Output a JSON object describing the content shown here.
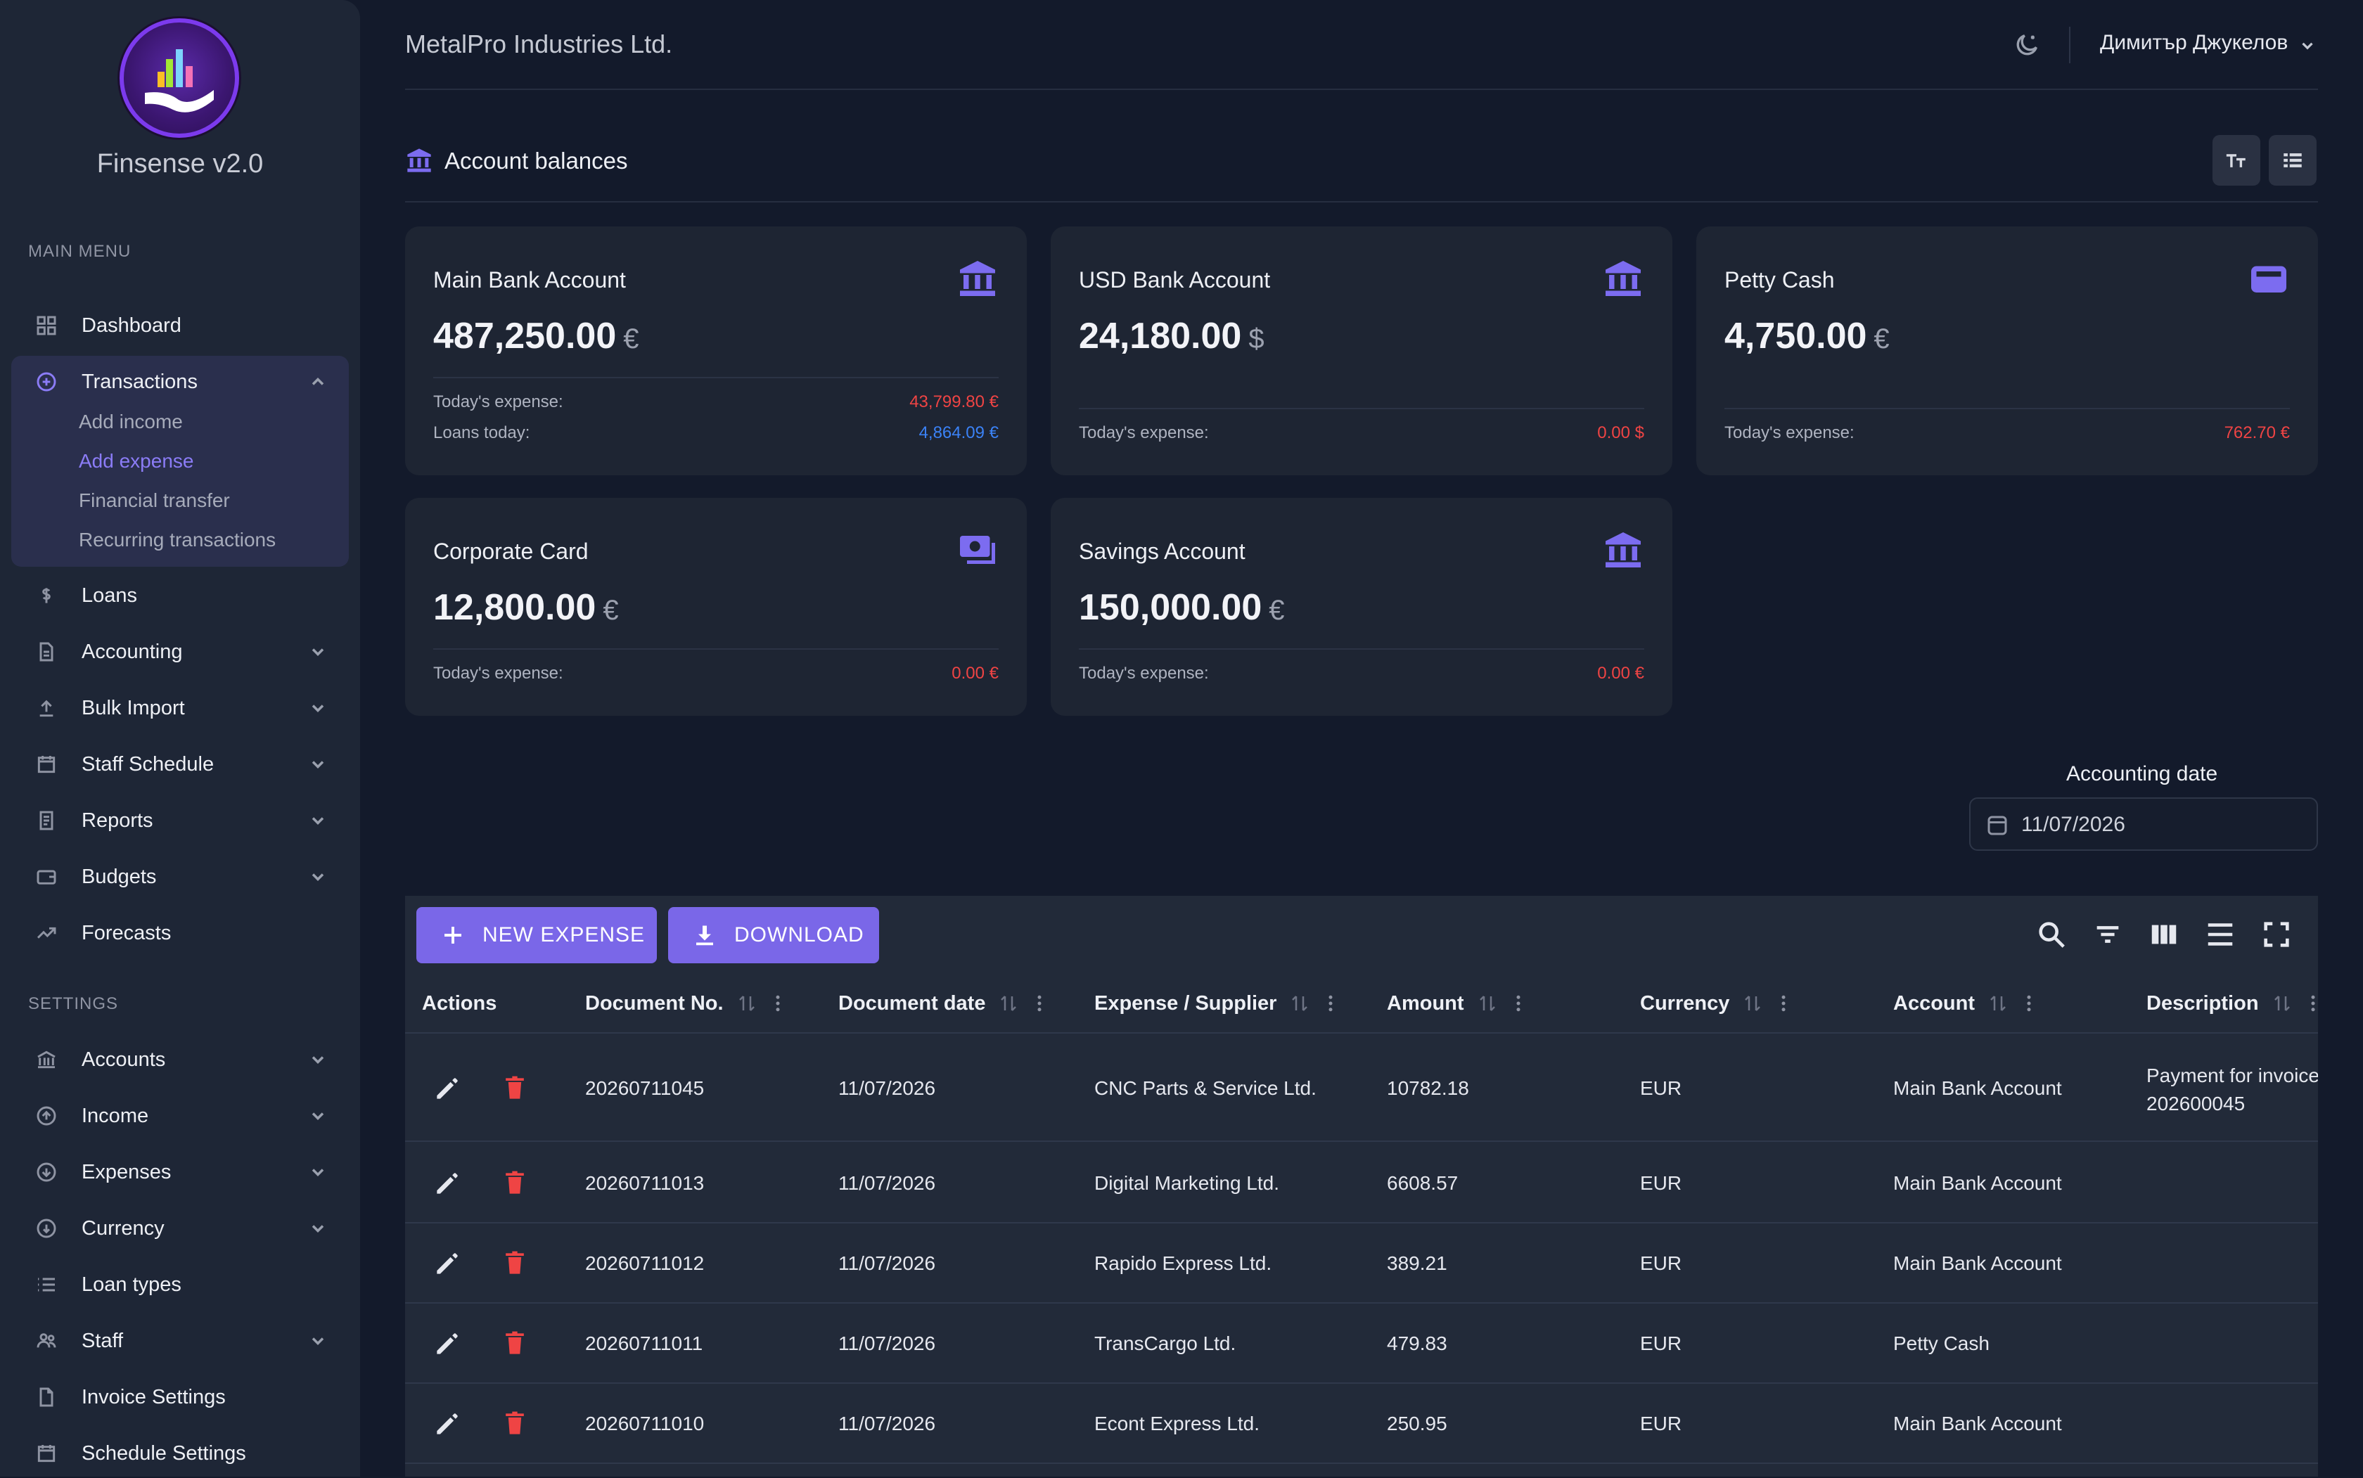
{
  "app": {
    "name": "Finsense v2.0"
  },
  "sidebar": {
    "main_menu_label": "MAIN MENU",
    "settings_label": "SETTINGS",
    "items": [
      {
        "label": "Dashboard"
      },
      {
        "label": "Transactions"
      },
      {
        "label": "Loans"
      },
      {
        "label": "Accounting"
      },
      {
        "label": "Bulk Import"
      },
      {
        "label": "Staff Schedule"
      },
      {
        "label": "Reports"
      },
      {
        "label": "Budgets"
      },
      {
        "label": "Forecasts"
      }
    ],
    "transactions_sub": [
      {
        "label": "Add income"
      },
      {
        "label": "Add expense"
      },
      {
        "label": "Financial transfer"
      },
      {
        "label": "Recurring transactions"
      }
    ],
    "settings_items": [
      {
        "label": "Accounts"
      },
      {
        "label": "Income"
      },
      {
        "label": "Expenses"
      },
      {
        "label": "Currency"
      },
      {
        "label": "Loan types"
      },
      {
        "label": "Staff"
      },
      {
        "label": "Invoice Settings"
      },
      {
        "label": "Schedule Settings"
      }
    ]
  },
  "header": {
    "company": "MetalPro Industries Ltd.",
    "user": "Димитър Джукелов"
  },
  "balances": {
    "title": "Account balances",
    "cards": [
      {
        "name": "Main Bank Account",
        "amount": "487,250.00",
        "currency": "€",
        "expense_label": "Today's expense:",
        "expense": "43,799.80 €",
        "loans_label": "Loans today:",
        "loans": "4,864.09 €"
      },
      {
        "name": "USD Bank Account",
        "amount": "24,180.00",
        "currency": "$",
        "expense_label": "Today's expense:",
        "expense": "0.00 $"
      },
      {
        "name": "Petty Cash",
        "amount": "4,750.00",
        "currency": "€",
        "expense_label": "Today's expense:",
        "expense": "762.70 €"
      },
      {
        "name": "Corporate Card",
        "amount": "12,800.00",
        "currency": "€",
        "expense_label": "Today's expense:",
        "expense": "0.00 €"
      },
      {
        "name": "Savings Account",
        "amount": "150,000.00",
        "currency": "€",
        "expense_label": "Today's expense:",
        "expense": "0.00 €"
      }
    ]
  },
  "accounting_date": {
    "label": "Accounting date",
    "value": "11/07/2026"
  },
  "grid": {
    "new_label": "NEW EXPENSE",
    "download_label": "DOWNLOAD",
    "columns": [
      "Actions",
      "Document No.",
      "Document date",
      "Expense / Supplier",
      "Amount",
      "Currency",
      "Account",
      "Description"
    ],
    "rows": [
      {
        "doc": "20260711045",
        "date": "11/07/2026",
        "supplier": "CNC Parts & Service Ltd.",
        "amount": "10782.18",
        "currency": "EUR",
        "account": "Main Bank Account",
        "desc1": "Payment for invoice",
        "desc2": "202600045"
      },
      {
        "doc": "20260711013",
        "date": "11/07/2026",
        "supplier": "Digital Marketing Ltd.",
        "amount": "6608.57",
        "currency": "EUR",
        "account": "Main Bank Account",
        "desc1": "",
        "desc2": ""
      },
      {
        "doc": "20260711012",
        "date": "11/07/2026",
        "supplier": "Rapido Express Ltd.",
        "amount": "389.21",
        "currency": "EUR",
        "account": "Main Bank Account",
        "desc1": "",
        "desc2": ""
      },
      {
        "doc": "20260711011",
        "date": "11/07/2026",
        "supplier": "TransCargo Ltd.",
        "amount": "479.83",
        "currency": "EUR",
        "account": "Petty Cash",
        "desc1": "",
        "desc2": ""
      },
      {
        "doc": "20260711010",
        "date": "11/07/2026",
        "supplier": "Econt Express Ltd.",
        "amount": "250.95",
        "currency": "EUR",
        "account": "Main Bank Account",
        "desc1": "",
        "desc2": ""
      }
    ]
  },
  "colors": {
    "accent": "#7a67e8",
    "negative": "#ef4444",
    "loan": "#3b82f6",
    "icon": "#7c6cf0"
  }
}
